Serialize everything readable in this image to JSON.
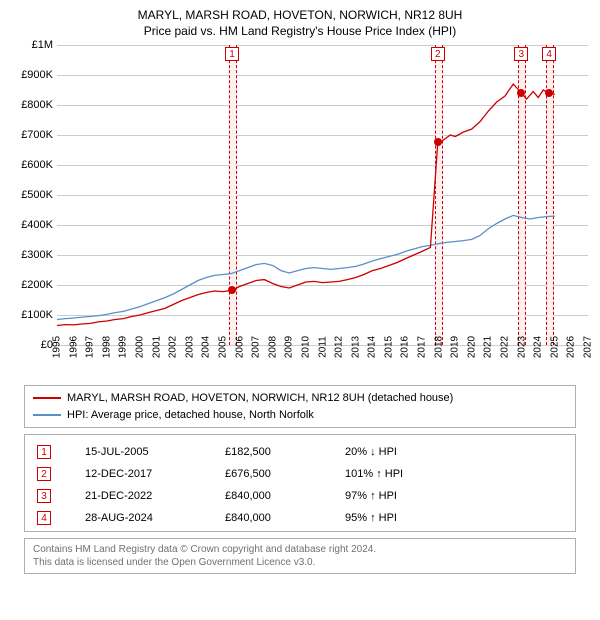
{
  "title_line1": "MARYL, MARSH ROAD, HOVETON, NORWICH, NR12 8UH",
  "title_line2": "Price paid vs. HM Land Registry's House Price Index (HPI)",
  "chart": {
    "type": "line",
    "background_color": "#ffffff",
    "grid_color": "#cccccc",
    "x_years": [
      1995,
      1996,
      1997,
      1998,
      1999,
      2000,
      2001,
      2002,
      2003,
      2004,
      2005,
      2006,
      2007,
      2008,
      2009,
      2010,
      2011,
      2012,
      2013,
      2014,
      2015,
      2016,
      2017,
      2018,
      2019,
      2020,
      2021,
      2022,
      2023,
      2024,
      2025,
      2026,
      2027
    ],
    "xlim": [
      1995,
      2027
    ],
    "ylim": [
      0,
      1000000
    ],
    "ytick_step": 100000,
    "ytick_labels": [
      "£0",
      "£100K",
      "£200K",
      "£300K",
      "£400K",
      "£500K",
      "£600K",
      "£700K",
      "£800K",
      "£900K",
      "£1M"
    ],
    "label_fontsize": 11,
    "band_color": "#fff0f0",
    "dash_color": "#cc0000",
    "markers": [
      {
        "n": "1",
        "x": 2005.55
      },
      {
        "n": "2",
        "x": 2017.95
      },
      {
        "n": "3",
        "x": 2022.98
      },
      {
        "n": "4",
        "x": 2024.66
      }
    ],
    "series": {
      "property": {
        "color": "#cc0000",
        "line_width": 1.3,
        "legend": "MARYL, MARSH ROAD, HOVETON, NORWICH, NR12 8UH (detached house)",
        "data": [
          [
            1995.0,
            65000
          ],
          [
            1995.5,
            68000
          ],
          [
            1996.0,
            67000
          ],
          [
            1996.5,
            70000
          ],
          [
            1997.0,
            72000
          ],
          [
            1997.5,
            77000
          ],
          [
            1998.0,
            80000
          ],
          [
            1998.5,
            85000
          ],
          [
            1999.0,
            88000
          ],
          [
            1999.5,
            95000
          ],
          [
            2000.0,
            100000
          ],
          [
            2000.5,
            108000
          ],
          [
            2001.0,
            115000
          ],
          [
            2001.5,
            122000
          ],
          [
            2002.0,
            135000
          ],
          [
            2002.5,
            148000
          ],
          [
            2003.0,
            158000
          ],
          [
            2003.5,
            168000
          ],
          [
            2004.0,
            175000
          ],
          [
            2004.5,
            180000
          ],
          [
            2005.0,
            178000
          ],
          [
            2005.55,
            182500
          ],
          [
            2006.0,
            195000
          ],
          [
            2006.5,
            205000
          ],
          [
            2007.0,
            215000
          ],
          [
            2007.5,
            218000
          ],
          [
            2008.0,
            205000
          ],
          [
            2008.5,
            195000
          ],
          [
            2009.0,
            190000
          ],
          [
            2009.5,
            200000
          ],
          [
            2010.0,
            210000
          ],
          [
            2010.5,
            212000
          ],
          [
            2011.0,
            208000
          ],
          [
            2011.5,
            210000
          ],
          [
            2012.0,
            212000
          ],
          [
            2012.5,
            218000
          ],
          [
            2013.0,
            225000
          ],
          [
            2013.5,
            235000
          ],
          [
            2014.0,
            248000
          ],
          [
            2014.5,
            255000
          ],
          [
            2015.0,
            265000
          ],
          [
            2015.5,
            275000
          ],
          [
            2016.0,
            288000
          ],
          [
            2016.5,
            300000
          ],
          [
            2017.0,
            312000
          ],
          [
            2017.5,
            325000
          ],
          [
            2017.95,
            676500
          ],
          [
            2018.2,
            680000
          ],
          [
            2018.7,
            700000
          ],
          [
            2019.0,
            695000
          ],
          [
            2019.5,
            710000
          ],
          [
            2020.0,
            720000
          ],
          [
            2020.5,
            745000
          ],
          [
            2021.0,
            780000
          ],
          [
            2021.5,
            810000
          ],
          [
            2022.0,
            830000
          ],
          [
            2022.5,
            870000
          ],
          [
            2022.98,
            840000
          ],
          [
            2023.3,
            820000
          ],
          [
            2023.7,
            845000
          ],
          [
            2024.0,
            825000
          ],
          [
            2024.3,
            850000
          ],
          [
            2024.66,
            840000
          ],
          [
            2025.0,
            835000
          ]
        ]
      },
      "hpi": {
        "color": "#5b8fc9",
        "line_width": 1.3,
        "legend": "HPI: Average price, detached house, North Norfolk",
        "data": [
          [
            1995.0,
            85000
          ],
          [
            1995.5,
            88000
          ],
          [
            1996.0,
            90000
          ],
          [
            1996.5,
            93000
          ],
          [
            1997.0,
            95000
          ],
          [
            1997.5,
            98000
          ],
          [
            1998.0,
            102000
          ],
          [
            1998.5,
            108000
          ],
          [
            1999.0,
            112000
          ],
          [
            1999.5,
            120000
          ],
          [
            2000.0,
            128000
          ],
          [
            2000.5,
            138000
          ],
          [
            2001.0,
            148000
          ],
          [
            2001.5,
            158000
          ],
          [
            2002.0,
            170000
          ],
          [
            2002.5,
            185000
          ],
          [
            2003.0,
            200000
          ],
          [
            2003.5,
            215000
          ],
          [
            2004.0,
            225000
          ],
          [
            2004.5,
            232000
          ],
          [
            2005.0,
            235000
          ],
          [
            2005.5,
            238000
          ],
          [
            2006.0,
            248000
          ],
          [
            2006.5,
            258000
          ],
          [
            2007.0,
            268000
          ],
          [
            2007.5,
            272000
          ],
          [
            2008.0,
            265000
          ],
          [
            2008.5,
            248000
          ],
          [
            2009.0,
            240000
          ],
          [
            2009.5,
            248000
          ],
          [
            2010.0,
            255000
          ],
          [
            2010.5,
            258000
          ],
          [
            2011.0,
            255000
          ],
          [
            2011.5,
            252000
          ],
          [
            2012.0,
            255000
          ],
          [
            2012.5,
            258000
          ],
          [
            2013.0,
            262000
          ],
          [
            2013.5,
            270000
          ],
          [
            2014.0,
            280000
          ],
          [
            2014.5,
            288000
          ],
          [
            2015.0,
            295000
          ],
          [
            2015.5,
            302000
          ],
          [
            2016.0,
            312000
          ],
          [
            2016.5,
            320000
          ],
          [
            2017.0,
            328000
          ],
          [
            2017.5,
            332000
          ],
          [
            2018.0,
            338000
          ],
          [
            2018.5,
            342000
          ],
          [
            2019.0,
            345000
          ],
          [
            2019.5,
            348000
          ],
          [
            2020.0,
            352000
          ],
          [
            2020.5,
            365000
          ],
          [
            2021.0,
            388000
          ],
          [
            2021.5,
            405000
          ],
          [
            2022.0,
            420000
          ],
          [
            2022.5,
            432000
          ],
          [
            2023.0,
            425000
          ],
          [
            2023.5,
            420000
          ],
          [
            2024.0,
            425000
          ],
          [
            2024.5,
            428000
          ],
          [
            2025.0,
            430000
          ]
        ]
      }
    },
    "sale_points": [
      {
        "x": 2005.55,
        "y": 182500,
        "color": "#cc0000"
      },
      {
        "x": 2017.95,
        "y": 676500,
        "color": "#cc0000"
      },
      {
        "x": 2022.98,
        "y": 840000,
        "color": "#cc0000"
      },
      {
        "x": 2024.66,
        "y": 840000,
        "color": "#cc0000"
      }
    ]
  },
  "sales_table": [
    {
      "n": "1",
      "date": "15-JUL-2005",
      "price": "£182,500",
      "pct": "20% ↓ HPI"
    },
    {
      "n": "2",
      "date": "12-DEC-2017",
      "price": "£676,500",
      "pct": "101% ↑ HPI"
    },
    {
      "n": "3",
      "date": "21-DEC-2022",
      "price": "£840,000",
      "pct": "97% ↑ HPI"
    },
    {
      "n": "4",
      "date": "28-AUG-2024",
      "price": "£840,000",
      "pct": "95% ↑ HPI"
    }
  ],
  "attribution_line1": "Contains HM Land Registry data © Crown copyright and database right 2024.",
  "attribution_line2": "This data is licensed under the Open Government Licence v3.0."
}
